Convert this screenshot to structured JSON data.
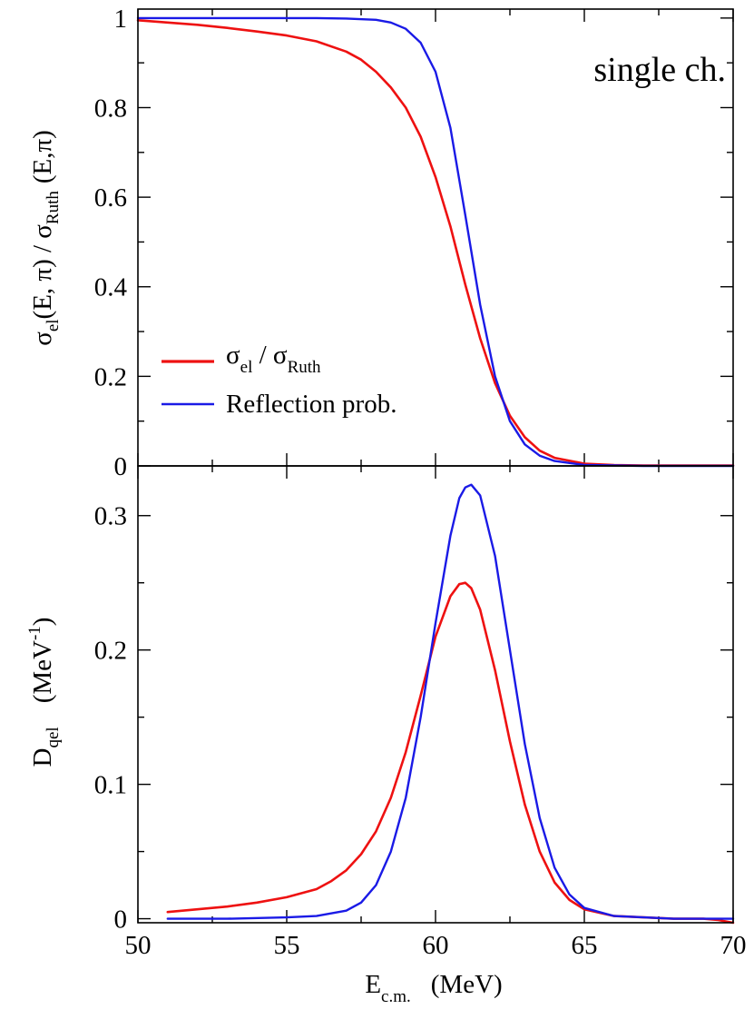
{
  "chart_data": [
    {
      "type": "line",
      "panel": "top",
      "ylabel": {
        "text": "σ",
        "sub": "el",
        "mid": "(E, π) / σ",
        "sub2": "Ruth",
        "tail": "(E,π)"
      },
      "annotation": "single ch.",
      "xlim": [
        50,
        70
      ],
      "ylim": [
        0,
        1.02
      ],
      "yticks": [
        "0",
        "0.2",
        "0.4",
        "0.6",
        "0.8",
        "1"
      ],
      "ytick_values": [
        0,
        0.2,
        0.4,
        0.6,
        0.8,
        1
      ],
      "legend_placement": "lower-left",
      "series": [
        {
          "name": {
            "text": "σ",
            "sub": "el",
            "mid": " / σ",
            "sub2": "Ruth"
          },
          "color": "#ee1111",
          "x": [
            50,
            51,
            52,
            53,
            54,
            55,
            56,
            57,
            57.5,
            58,
            58.5,
            59,
            59.5,
            60,
            60.5,
            61,
            61.5,
            62,
            62.5,
            63,
            63.5,
            64,
            65,
            66,
            67,
            68,
            69,
            70
          ],
          "y": [
            0.995,
            0.99,
            0.985,
            0.978,
            0.97,
            0.961,
            0.948,
            0.925,
            0.907,
            0.88,
            0.845,
            0.8,
            0.735,
            0.645,
            0.535,
            0.405,
            0.285,
            0.185,
            0.112,
            0.064,
            0.034,
            0.018,
            0.005,
            0.002,
            0.001,
            0.001,
            0.001,
            0.001
          ]
        },
        {
          "name": "Reflection prob.",
          "color": "#1a1ae6",
          "x": [
            50,
            52,
            54,
            56,
            57,
            58,
            58.5,
            59,
            59.5,
            60,
            60.5,
            61,
            61.5,
            62,
            62.5,
            63,
            63.5,
            64,
            65,
            66,
            67,
            68,
            69,
            70
          ],
          "y": [
            1,
            1,
            1,
            1,
            0.999,
            0.996,
            0.99,
            0.976,
            0.945,
            0.88,
            0.755,
            0.56,
            0.36,
            0.2,
            0.1,
            0.048,
            0.023,
            0.011,
            0.002,
            0.001,
            0,
            0,
            0,
            0
          ]
        }
      ]
    },
    {
      "type": "line",
      "panel": "bottom",
      "ylabel": {
        "text": "D",
        "sub": "qel",
        "mid": "(MeV",
        "sup": "-1",
        "tail": ")"
      },
      "xlabel": {
        "text": "E",
        "sub": "c.m.",
        "mid": "(MeV)"
      },
      "xlim": [
        50,
        70
      ],
      "ylim": [
        -0.003,
        0.337
      ],
      "xticks": [
        "50",
        "55",
        "60",
        "65",
        "70"
      ],
      "xtick_values": [
        50,
        55,
        60,
        65,
        70
      ],
      "yticks": [
        "0",
        "0.1",
        "0.2",
        "0.3"
      ],
      "ytick_values": [
        0,
        0.1,
        0.2,
        0.3
      ],
      "series": [
        {
          "color": "#ee1111",
          "x": [
            51,
            52,
            53,
            54,
            55,
            56,
            56.5,
            57,
            57.5,
            58,
            58.5,
            59,
            59.5,
            60,
            60.5,
            60.8,
            61,
            61.2,
            61.5,
            62,
            62.5,
            63,
            63.5,
            64,
            64.5,
            65,
            66,
            67,
            68,
            69,
            69.5,
            70
          ],
          "y": [
            0.005,
            0.007,
            0.009,
            0.012,
            0.016,
            0.022,
            0.028,
            0.036,
            0.048,
            0.065,
            0.09,
            0.124,
            0.166,
            0.21,
            0.24,
            0.249,
            0.25,
            0.246,
            0.23,
            0.185,
            0.132,
            0.085,
            0.05,
            0.027,
            0.014,
            0.007,
            0.002,
            0.001,
            0,
            0,
            -0.001,
            -0.003
          ]
        },
        {
          "color": "#1a1ae6",
          "x": [
            51,
            53,
            55,
            56,
            57,
            57.5,
            58,
            58.5,
            59,
            59.5,
            60,
            60.5,
            60.8,
            61,
            61.2,
            61.5,
            62,
            62.5,
            63,
            63.5,
            64,
            64.5,
            65,
            66,
            67,
            68,
            69,
            70
          ],
          "y": [
            0,
            0,
            0.001,
            0.002,
            0.006,
            0.012,
            0.025,
            0.05,
            0.09,
            0.15,
            0.22,
            0.285,
            0.313,
            0.321,
            0.323,
            0.315,
            0.27,
            0.2,
            0.13,
            0.075,
            0.038,
            0.018,
            0.008,
            0.002,
            0.001,
            0,
            0,
            0
          ]
        }
      ]
    }
  ]
}
